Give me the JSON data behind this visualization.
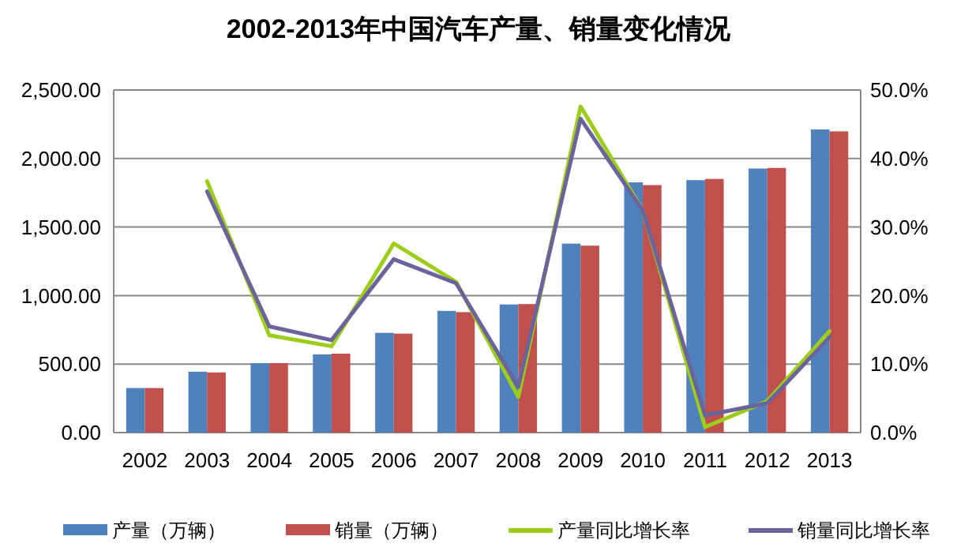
{
  "chart_data": {
    "type": "bar",
    "title": "2002-2013年中国汽车产量、销量变化情况",
    "categories": [
      "2002",
      "2003",
      "2004",
      "2005",
      "2006",
      "2007",
      "2008",
      "2009",
      "2010",
      "2011",
      "2012",
      "2013"
    ],
    "series": [
      {
        "name": "产量（万辆）",
        "color": "#4f81bd",
        "values": [
          325,
          444,
          507,
          571,
          728,
          888,
          935,
          1379,
          1826,
          1842,
          1927,
          2212
        ]
      },
      {
        "name": "销量（万辆）",
        "color": "#c0504d",
        "values": [
          325,
          439,
          507,
          576,
          722,
          879,
          938,
          1364,
          1806,
          1851,
          1931,
          2198
        ]
      },
      {
        "name": "产量同比增长率",
        "type": "line",
        "axis": "y2",
        "color": "#9bcd1a",
        "values": [
          null,
          36.7,
          14.2,
          12.6,
          27.6,
          22.0,
          5.2,
          47.6,
          32.4,
          0.8,
          4.6,
          14.8
        ]
      },
      {
        "name": "销量同比增长率",
        "type": "line",
        "axis": "y2",
        "color": "#6b639b",
        "values": [
          null,
          35.2,
          15.5,
          13.5,
          25.3,
          21.8,
          6.7,
          45.8,
          32.4,
          2.5,
          4.3,
          13.9
        ]
      }
    ],
    "ylim": [
      0,
      2500
    ],
    "yticks": [
      {
        "value": 0,
        "label": "0.00"
      },
      {
        "value": 500,
        "label": "500.00"
      },
      {
        "value": 1000,
        "label": "1,000.00"
      },
      {
        "value": 1500,
        "label": "1,500.00"
      },
      {
        "value": 2000,
        "label": "2,000.00"
      },
      {
        "value": 2500,
        "label": "2,500.00"
      }
    ],
    "y2lim": [
      0,
      50
    ],
    "y2ticks": [
      {
        "value": 0,
        "label": "0.0%"
      },
      {
        "value": 10,
        "label": "10.0%"
      },
      {
        "value": 20,
        "label": "20.0%"
      },
      {
        "value": 30,
        "label": "30.0%"
      },
      {
        "value": 40,
        "label": "40.0%"
      },
      {
        "value": 50,
        "label": "50.0%"
      }
    ],
    "grid": "y",
    "legend": "bottom",
    "marker": "none",
    "line_style": "solid"
  }
}
